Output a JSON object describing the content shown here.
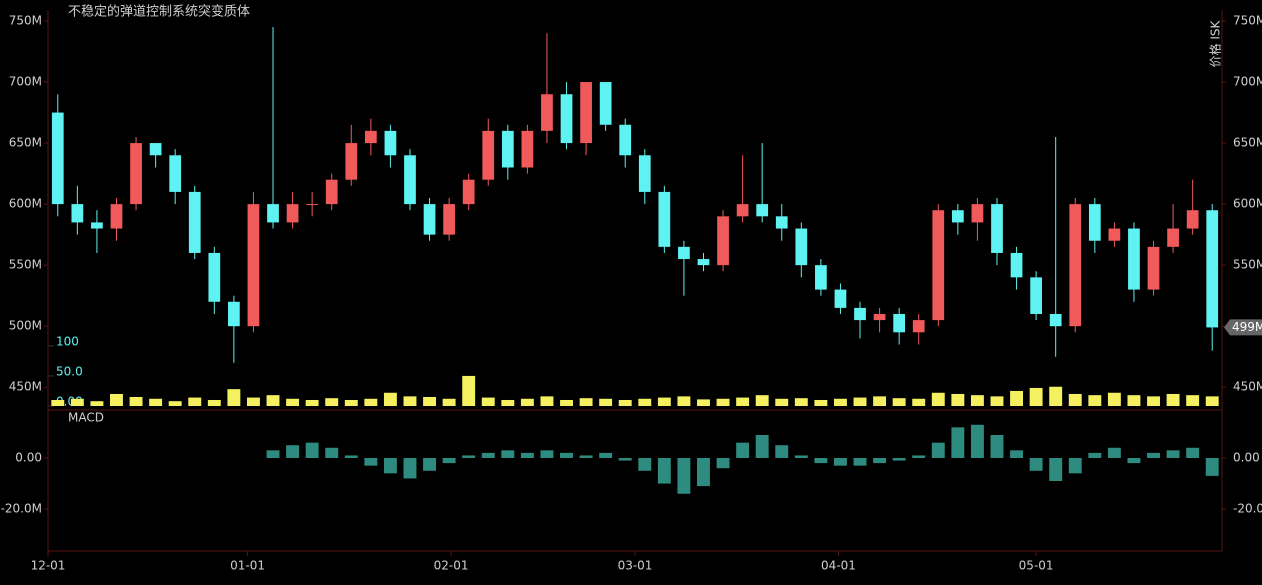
{
  "chart_data": [
    {
      "type": "candlestick",
      "title": "不稳定的弹道控制系统突变质体",
      "y_axis_label": "价格 ISK",
      "up_color": "#f05a5a",
      "down_color": "#5ef2f2",
      "xlim": [
        0,
        60
      ],
      "ylim": [
        433,
        759
      ],
      "yticks": [
        {
          "value": 450,
          "label": "450M"
        },
        {
          "value": 500,
          "label": "500M"
        },
        {
          "value": 550,
          "label": "550M"
        },
        {
          "value": 600,
          "label": "600M"
        },
        {
          "value": 650,
          "label": "650M"
        },
        {
          "value": 700,
          "label": "700M"
        },
        {
          "value": 750,
          "label": "750M"
        }
      ],
      "last_price": {
        "value": 499,
        "label": "499M"
      },
      "open": [
        675,
        600,
        585,
        580,
        600,
        650,
        640,
        610,
        560,
        520,
        500,
        600,
        585,
        600,
        600,
        620,
        650,
        660,
        640,
        600,
        575,
        600,
        620,
        660,
        630,
        660,
        690,
        650,
        700,
        665,
        640,
        610,
        565,
        555,
        550,
        590,
        600,
        590,
        580,
        550,
        530,
        515,
        505,
        510,
        495,
        505,
        595,
        585,
        600,
        560,
        540,
        510,
        500,
        600,
        570,
        580,
        530,
        565,
        580,
        595
      ],
      "high": [
        690,
        615,
        595,
        605,
        655,
        650,
        645,
        615,
        565,
        525,
        610,
        745,
        610,
        610,
        625,
        665,
        670,
        665,
        645,
        605,
        605,
        625,
        670,
        665,
        665,
        740,
        700,
        700,
        700,
        670,
        645,
        615,
        570,
        560,
        595,
        640,
        650,
        600,
        585,
        555,
        535,
        520,
        515,
        515,
        510,
        600,
        600,
        605,
        605,
        565,
        545,
        655,
        605,
        605,
        585,
        585,
        570,
        600,
        620,
        600
      ],
      "low": [
        590,
        575,
        560,
        570,
        595,
        630,
        600,
        555,
        510,
        470,
        495,
        580,
        580,
        590,
        595,
        615,
        640,
        630,
        595,
        570,
        570,
        595,
        615,
        620,
        625,
        650,
        645,
        640,
        660,
        630,
        600,
        560,
        525,
        545,
        545,
        585,
        585,
        570,
        540,
        525,
        510,
        490,
        495,
        485,
        485,
        500,
        575,
        570,
        550,
        530,
        505,
        475,
        495,
        560,
        565,
        520,
        525,
        560,
        575,
        480
      ],
      "close": [
        600,
        585,
        580,
        600,
        650,
        640,
        610,
        560,
        520,
        500,
        600,
        585,
        600,
        600,
        620,
        650,
        660,
        640,
        600,
        575,
        600,
        620,
        660,
        630,
        660,
        690,
        650,
        700,
        665,
        640,
        610,
        565,
        555,
        550,
        590,
        600,
        590,
        580,
        550,
        530,
        515,
        505,
        510,
        495,
        505,
        595,
        585,
        600,
        560,
        540,
        510,
        500,
        600,
        570,
        580,
        530,
        565,
        580,
        595,
        499
      ]
    },
    {
      "type": "bar",
      "color": "#f5f060",
      "xlim": [
        0,
        60
      ],
      "ylim": [
        0,
        113
      ],
      "yticks": [
        {
          "value": 0,
          "label": "0.00"
        },
        {
          "value": 50,
          "label": "50.0"
        },
        100
      ],
      "values": [
        10,
        12,
        8,
        20,
        15,
        12,
        8,
        14,
        10,
        28,
        14,
        18,
        12,
        10,
        13,
        10,
        12,
        22,
        16,
        15,
        12,
        50,
        14,
        10,
        12,
        16,
        10,
        13,
        12,
        10,
        12,
        14,
        16,
        11,
        12,
        14,
        18,
        12,
        13,
        10,
        12,
        14,
        16,
        13,
        12,
        22,
        20,
        18,
        16,
        25,
        30,
        32,
        20,
        18,
        22,
        18,
        16,
        20,
        18,
        16
      ]
    },
    {
      "type": "bar",
      "title": "MACD",
      "color": "#2e8b7f",
      "xlim": [
        0,
        60
      ],
      "ylim": [
        -36,
        18
      ],
      "yticks": [
        {
          "value": -20,
          "label": "-20.0M"
        },
        {
          "value": 0,
          "label": "0.00"
        }
      ],
      "xticks": [
        {
          "value": 0,
          "label": "12-01"
        },
        {
          "value": 10.2,
          "label": "01-01"
        },
        {
          "value": 20.6,
          "label": "02-01"
        },
        {
          "value": 30.0,
          "label": "03-01"
        },
        {
          "value": 40.4,
          "label": "04-01"
        },
        {
          "value": 50.5,
          "label": "05-01"
        }
      ],
      "values": [
        null,
        null,
        null,
        null,
        null,
        null,
        null,
        null,
        null,
        null,
        null,
        3,
        5,
        6,
        4,
        1,
        -3,
        -6,
        -8,
        -5,
        -2,
        1,
        2,
        3,
        2,
        3,
        2,
        1,
        2,
        -1,
        -5,
        -10,
        -14,
        -11,
        -4,
        6,
        9,
        5,
        1,
        -2,
        -3,
        -3,
        -2,
        -1,
        1,
        6,
        12,
        13,
        9,
        3,
        -5,
        -9,
        -6,
        2,
        4,
        -2,
        2,
        3,
        4,
        -7
      ]
    }
  ]
}
